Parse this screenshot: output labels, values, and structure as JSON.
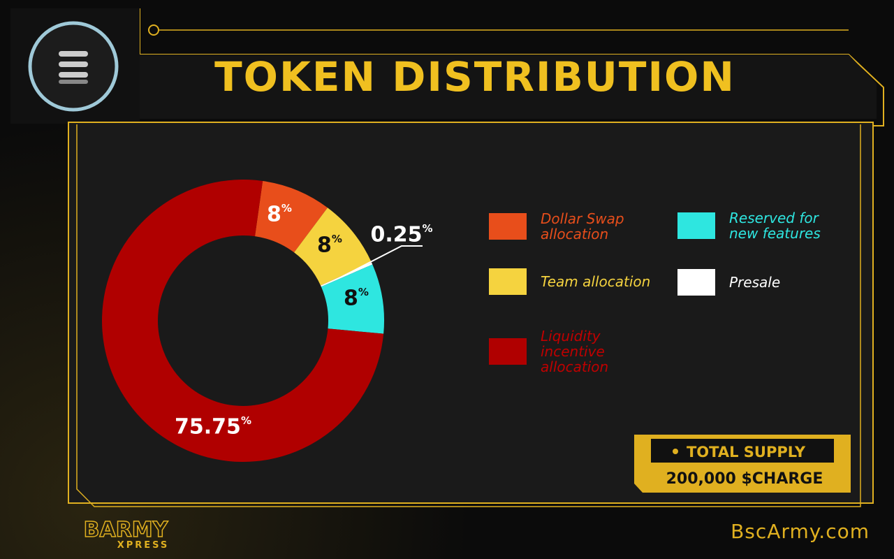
{
  "header": {
    "title": "TOKEN DISTRIBUTION"
  },
  "chart_data": {
    "type": "donut",
    "categories": [
      "Dollar Swap allocation",
      "Team allocation",
      "Presale",
      "Reserved for new features",
      "Liquidity incentive allocation"
    ],
    "values": [
      8,
      8,
      0.25,
      8,
      75.75
    ],
    "unit": "%",
    "colors": [
      "#e84e1b",
      "#f5d33f",
      "#ffffff",
      "#2ee6e0",
      "#b00000"
    ]
  },
  "supply": {
    "label": "TOTAL SUPPLY",
    "value": "200,000 $CHARGE"
  },
  "footer": {
    "logo": "BARMY",
    "logo_sub": "XPRESS",
    "site": "BscArmy.com"
  }
}
